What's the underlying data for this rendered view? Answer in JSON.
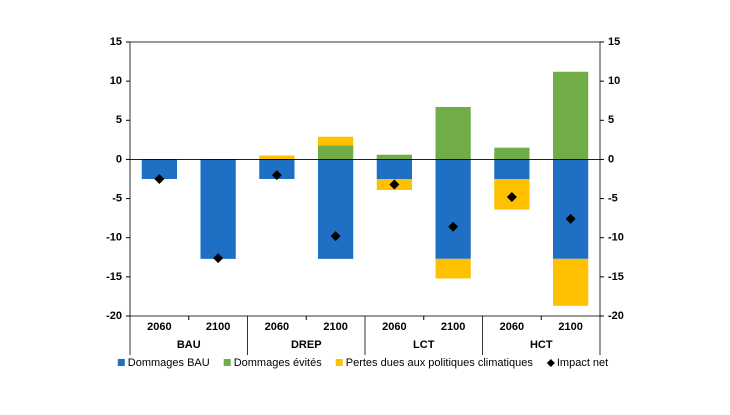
{
  "chart_data": {
    "type": "bar",
    "categories": [
      "2060",
      "2100",
      "2060",
      "2100",
      "2060",
      "2100",
      "2060",
      "2100"
    ],
    "groups": [
      "BAU",
      "DREP",
      "LCT",
      "HCT"
    ],
    "series": [
      {
        "name": "Dommages BAU",
        "type": "bar",
        "color": "#1f6fc5",
        "values": [
          -2.5,
          -12.7,
          -2.5,
          -12.7,
          -2.5,
          -12.7,
          -2.5,
          -12.7
        ]
      },
      {
        "name": "Dommages évités",
        "type": "bar",
        "color": "#70ad47",
        "values": [
          0,
          0,
          0,
          1.8,
          0.6,
          6.7,
          1.5,
          11.2
        ]
      },
      {
        "name": "Pertes dues aux politiques climatiques",
        "type": "bar",
        "color": "#ffc000",
        "values": [
          0,
          0,
          0.5,
          1.1,
          -1.4,
          -2.5,
          -3.9,
          -6.0
        ]
      },
      {
        "name": "Impact net",
        "type": "scatter",
        "color": "#000000",
        "values": [
          -2.5,
          -12.6,
          -2.0,
          -9.8,
          -3.2,
          -8.6,
          -4.8,
          -7.6
        ]
      }
    ],
    "ylim": [
      -20,
      15
    ],
    "yticks": [
      -20,
      -15,
      -10,
      -5,
      0,
      5,
      10,
      15
    ],
    "y2lim": [
      -20,
      15
    ],
    "y2ticks": [
      -20,
      -15,
      -10,
      -5,
      0,
      5,
      10,
      15
    ],
    "grid": false
  }
}
